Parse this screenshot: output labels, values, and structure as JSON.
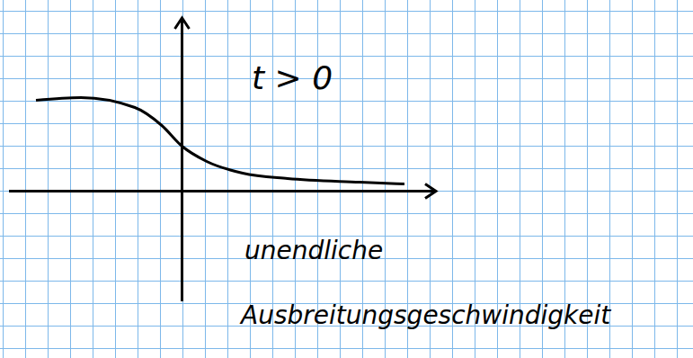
{
  "chart_data": {
    "type": "line",
    "x": [
      -6.5,
      -4.5,
      -2.1,
      -0.9,
      0,
      1.1,
      2.7,
      4.7,
      7.9,
      9.9
    ],
    "values": [
      4.04,
      4.16,
      3.72,
      2.92,
      2.0,
      1.32,
      0.8,
      0.56,
      0.4,
      0.32
    ],
    "color": "#000000",
    "xlim": [
      -7.7,
      11.3
    ],
    "ylim": [
      -4.9,
      7.7
    ],
    "tick_labels": false,
    "annotations": [
      "t > 0",
      "unendliche",
      "Ausbreitungsgeschwindigkeit"
    ]
  }
}
